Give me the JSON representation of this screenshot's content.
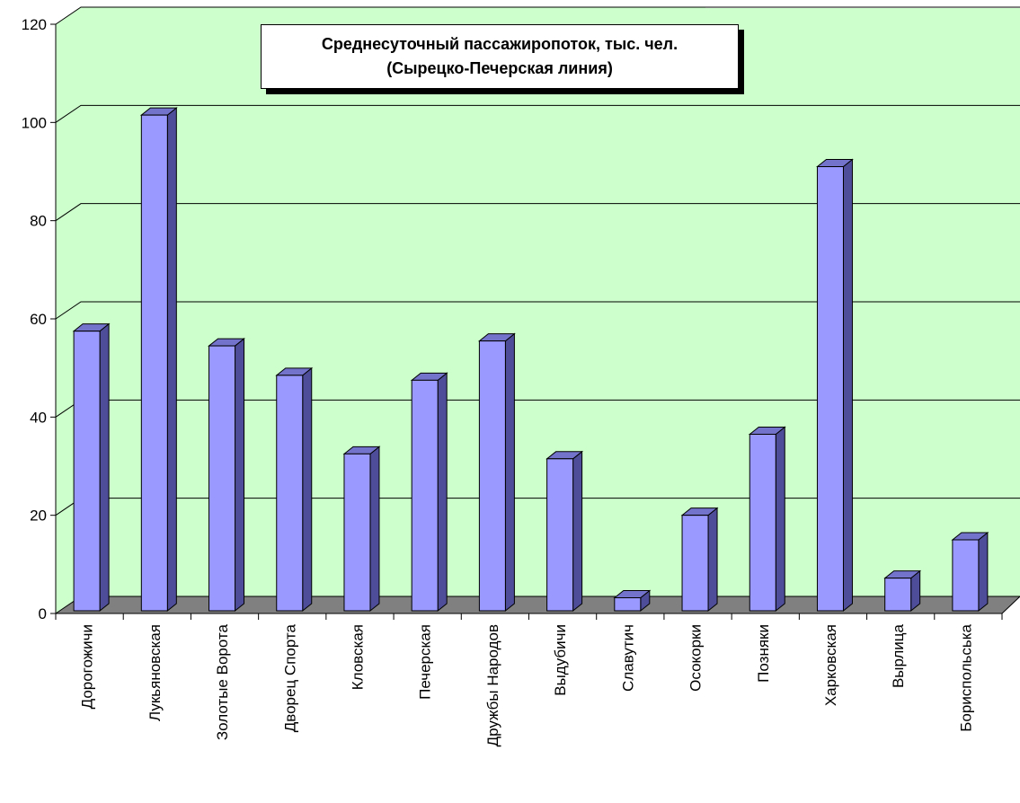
{
  "chart_data": {
    "type": "bar",
    "title_line1": "Среднесуточный пассажиропоток, тыс. чел.",
    "title_line2": "(Сырецко-Печерская линия)",
    "categories": [
      "Дорогожичи",
      "Лукьяновская",
      "Золотые Ворота",
      "Дворец Спорта",
      "Кловская",
      "Печерская",
      "Дружбы Народов",
      "Выдубичи",
      "Славутич",
      "Осокорки",
      "Позняки",
      "Харковская",
      "Вырлица",
      "Бориспольська"
    ],
    "values": [
      57.5,
      101.5,
      54.5,
      48.5,
      32.5,
      47.5,
      55.5,
      31.5,
      3.2,
      20.0,
      36.5,
      91.0,
      7.2,
      15.0
    ],
    "ylim": [
      0,
      120
    ],
    "yticks": [
      "0",
      "20",
      "40",
      "60",
      "80",
      "100",
      "120"
    ],
    "grid": true,
    "colors": {
      "bar_front": "#9999ff",
      "bar_side": "#4d4d99",
      "bar_top": "#7373cc",
      "wall": "#ccffcc",
      "floor": "#808080",
      "gridline": "#000000"
    }
  }
}
